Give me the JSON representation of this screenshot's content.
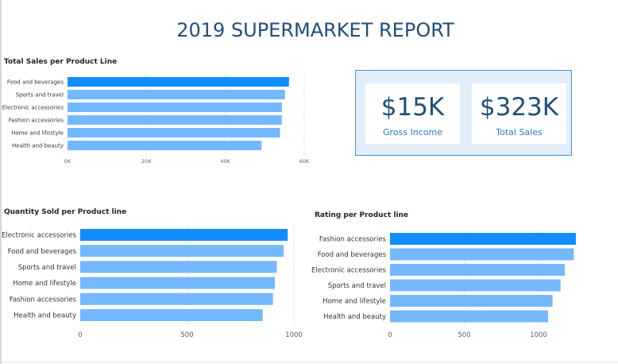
{
  "report": {
    "title": "2019 SUPERMARKET REPORT"
  },
  "colors": {
    "highlight_bar": "#118dff",
    "bar": "#74b9ff",
    "title": "#1f4e79",
    "kpi_label": "#2a78c6",
    "kpi_panel_bg": "#e2effb",
    "kpi_panel_border": "#4d8fd1",
    "axis_text": "#605e5c"
  },
  "kpis": [
    {
      "value": "$15K",
      "label": "Gross Income"
    },
    {
      "value": "$323K",
      "label": "Total Sales"
    }
  ],
  "chart_data": [
    {
      "type": "bar",
      "orientation": "horizontal",
      "title": "Total Sales per Product Line",
      "categories": [
        "Food and beverages",
        "Sports and travel",
        "Electronic accessories",
        "Fashion accessories",
        "Home and lifestyle",
        "Health and beauty"
      ],
      "values": [
        56145,
        55123,
        54338,
        54306,
        53862,
        49194
      ],
      "xlim": [
        0,
        60000
      ],
      "ticks": [
        0,
        20000,
        40000,
        60000
      ],
      "tick_labels": [
        "0K",
        "20K",
        "40K",
        "60K"
      ],
      "grid": true,
      "highlight_index": 0
    },
    {
      "type": "bar",
      "orientation": "horizontal",
      "title": "Quantity Sold per Product line",
      "categories": [
        "Electronic accessories",
        "Food and beverages",
        "Sports and travel",
        "Home and lifestyle",
        "Fashion accessories",
        "Health and beauty"
      ],
      "values": [
        971,
        952,
        920,
        911,
        902,
        854
      ],
      "xlim": [
        0,
        1000
      ],
      "ticks": [
        0,
        500,
        1000
      ],
      "tick_labels": [
        "0",
        "500",
        "1000"
      ],
      "grid": true,
      "highlight_index": 0
    },
    {
      "type": "bar",
      "orientation": "horizontal",
      "title": "Rating per Product line",
      "categories": [
        "Fashion accessories",
        "Food and beverages",
        "Electronic accessories",
        "Sports and travel",
        "Home and lifestyle",
        "Health and beauty"
      ],
      "values": [
        1251,
        1237,
        1177,
        1148,
        1094,
        1064
      ],
      "xlim": [
        0,
        1000
      ],
      "ticks": [
        0,
        500,
        1000
      ],
      "tick_labels": [
        "0",
        "500",
        "1000"
      ],
      "grid": true,
      "highlight_index": 0
    }
  ]
}
